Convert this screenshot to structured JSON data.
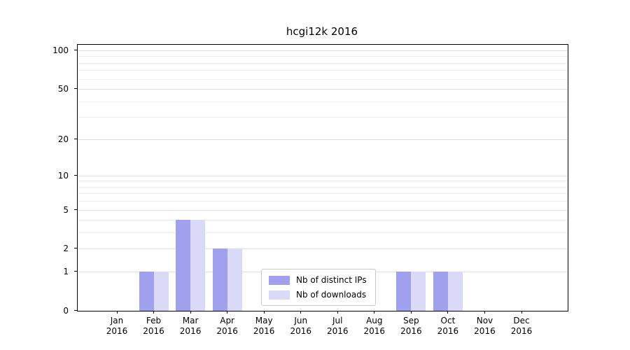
{
  "chart_data": {
    "type": "bar",
    "title": "hcgi12k 2016",
    "categories": [
      "Jan",
      "Feb",
      "Mar",
      "Apr",
      "May",
      "Jun",
      "Jul",
      "Aug",
      "Sep",
      "Oct",
      "Nov",
      "Dec"
    ],
    "x_year_label": "2016",
    "series": [
      {
        "name": "Nb of distinct IPs",
        "color": "#a0a0ee",
        "values": [
          0,
          1,
          4,
          2,
          0,
          0,
          0,
          0,
          1,
          1,
          0,
          0
        ]
      },
      {
        "name": "Nb of downloads",
        "color": "#dadaf8",
        "values": [
          0,
          1,
          4,
          2,
          0,
          0,
          0,
          0,
          1,
          1,
          0,
          0
        ]
      }
    ],
    "y_scale": "log1p",
    "ylim": [
      0,
      100
    ],
    "y_ticks": [
      0,
      1,
      2,
      5,
      10,
      20,
      50,
      100
    ],
    "y_minor_ticks": [
      3,
      4,
      6,
      7,
      8,
      9,
      30,
      40,
      60,
      70,
      80,
      90
    ],
    "grid": "horizontal",
    "legend": {
      "position": "inside-bottom-center"
    }
  }
}
